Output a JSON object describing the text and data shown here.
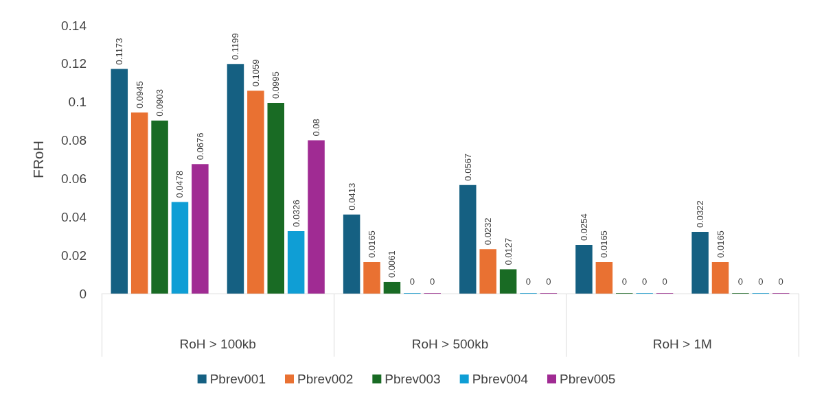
{
  "chart_data": {
    "type": "bar",
    "ylabel": "FRoH",
    "categories": [
      null,
      null,
      null,
      null,
      null,
      null
    ],
    "annotations": [
      "RoH > 100kb",
      "RoH > 500kb",
      "RoH > 1M"
    ],
    "series": [
      {
        "name": "Pbrev001",
        "color": "#156082",
        "values": [
          0.1173,
          0.1199,
          0.0413,
          0.0567,
          0.0254,
          0.0322
        ]
      },
      {
        "name": "Pbrev002",
        "color": "#e97132",
        "values": [
          0.0945,
          0.1059,
          0.0165,
          0.0232,
          0.0165,
          0.0165
        ]
      },
      {
        "name": "Pbrev003",
        "color": "#196b24",
        "values": [
          0.0903,
          0.0995,
          0.0061,
          0.0127,
          0,
          0
        ]
      },
      {
        "name": "Pbrev004",
        "color": "#0f9ed5",
        "values": [
          0.0478,
          0.0326,
          0,
          0,
          0,
          0
        ]
      },
      {
        "name": "Pbrev005",
        "color": "#a02b93",
        "values": [
          0.0676,
          0.08,
          0,
          0,
          0,
          0
        ]
      }
    ],
    "ylim": [
      0,
      0.14
    ],
    "yticks": [
      0,
      0.02,
      0.04,
      0.06,
      0.08,
      0.1,
      0.12,
      0.14
    ],
    "grid": false,
    "data_labels": true,
    "legend": "bottom"
  }
}
